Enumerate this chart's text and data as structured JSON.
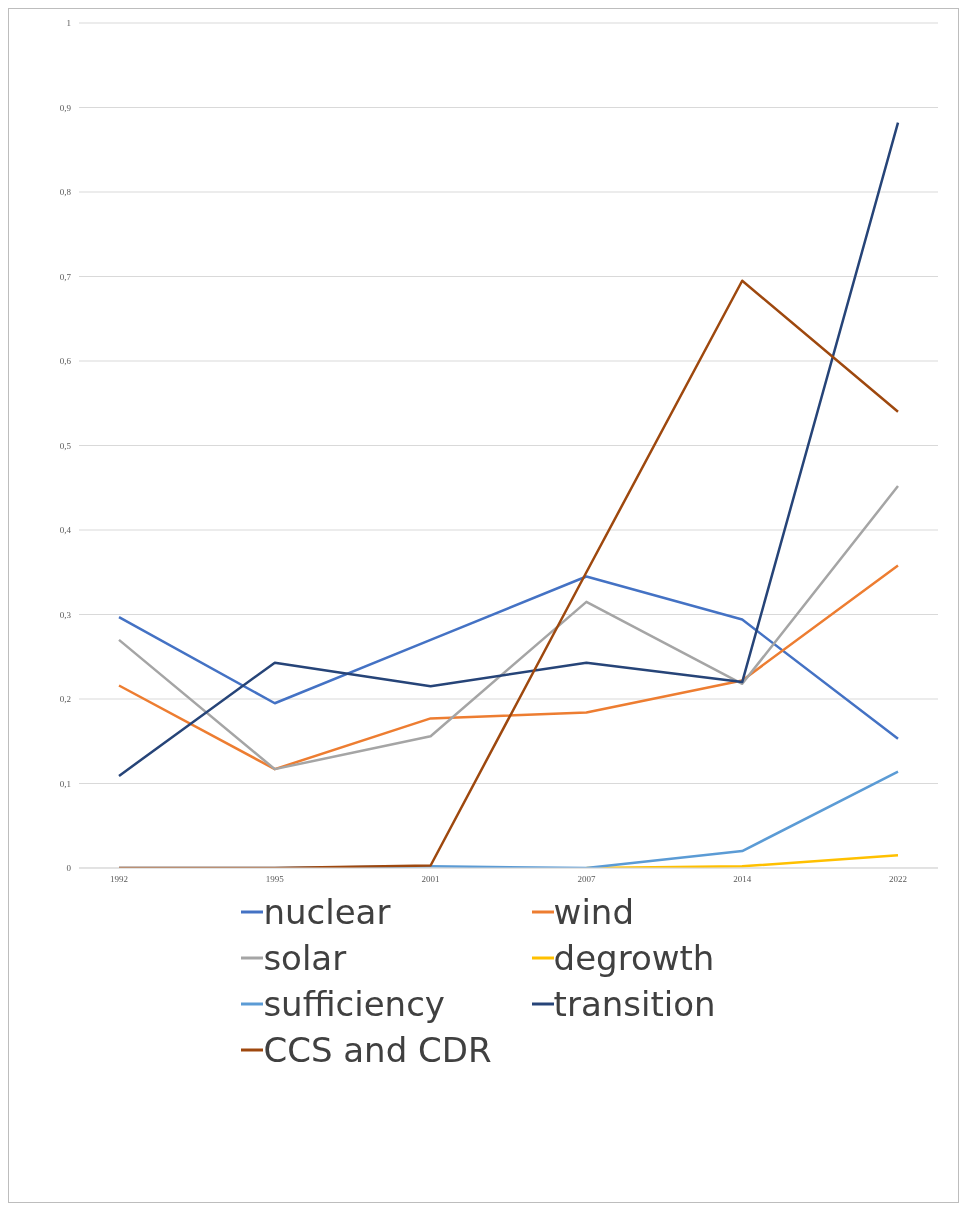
{
  "chart_data": {
    "type": "line",
    "categories": [
      "1992",
      "1995",
      "2001",
      "2007",
      "2014",
      "2022"
    ],
    "series": [
      {
        "name": "nuclear",
        "color": "#4472c4",
        "values": [
          0.297,
          0.195,
          0.27,
          0.345,
          0.294,
          0.153
        ]
      },
      {
        "name": "wind",
        "color": "#ed7d31",
        "values": [
          0.216,
          0.117,
          0.177,
          0.184,
          0.222,
          0.358
        ]
      },
      {
        "name": "solar",
        "color": "#a5a5a5",
        "values": [
          0.27,
          0.117,
          0.156,
          0.315,
          0.218,
          0.452
        ]
      },
      {
        "name": "degrowth",
        "color": "#ffc000",
        "values": [
          null,
          null,
          null,
          0,
          0.002,
          0.015
        ]
      },
      {
        "name": "sufficiency",
        "color": "#5b9bd5",
        "values": [
          0,
          0,
          0.002,
          0,
          0.02,
          0.114
        ]
      },
      {
        "name": "transition",
        "color": "#264478",
        "values": [
          0.109,
          0.243,
          0.215,
          0.243,
          0.22,
          0.882
        ]
      },
      {
        "name": "CCS and CDR",
        "color": "#9e480e",
        "values": [
          0,
          0,
          0.003,
          0.35,
          0.695,
          0.54
        ]
      }
    ],
    "ylim": [
      0,
      1
    ],
    "yticks": [
      {
        "value": 0,
        "label": "0"
      },
      {
        "value": 0.1,
        "label": "0,1"
      },
      {
        "value": 0.2,
        "label": "0,2"
      },
      {
        "value": 0.3,
        "label": "0,3"
      },
      {
        "value": 0.4,
        "label": "0,4"
      },
      {
        "value": 0.5,
        "label": "0,5"
      },
      {
        "value": 0.6,
        "label": "0,6"
      },
      {
        "value": 0.7,
        "label": "0,7"
      },
      {
        "value": 0.8,
        "label": "0,8"
      },
      {
        "value": 0.9,
        "label": "0,9"
      },
      {
        "value": 1,
        "label": "1"
      }
    ],
    "grid": "y",
    "legend": "bottom",
    "marker": "none",
    "line_style": "solid"
  }
}
